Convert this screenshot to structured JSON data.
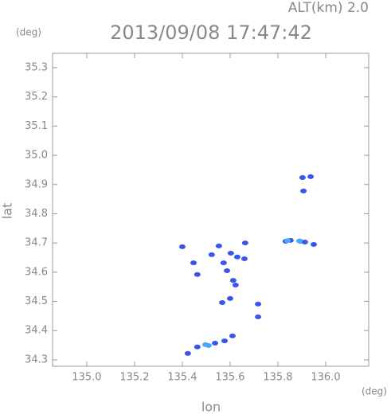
{
  "chart_data": {
    "type": "scatter",
    "title": "2013/09/08 17:47:42",
    "annotation": "ALT(km) 2.0",
    "x_label": "lon",
    "y_label": "lat",
    "x_unit": "(deg)",
    "y_unit": "(deg)",
    "xlim": [
      134.857,
      136.18
    ],
    "ylim": [
      34.278,
      35.349
    ],
    "xticks": [
      {
        "value": 135,
        "label": "135.0"
      },
      135.2,
      135.4,
      135.6,
      135.8,
      {
        "value": 136,
        "label": "136.0"
      }
    ],
    "yticks": [
      34.3,
      34.4,
      34.5,
      34.6,
      34.7,
      34.8,
      34.9,
      {
        "value": 35,
        "label": "35.0"
      },
      35.1,
      35.2,
      35.3
    ],
    "series": [
      {
        "color": "#3a55ee",
        "x": [
          135.903,
          135.937,
          135.907,
          135.833,
          135.853,
          135.893,
          135.913,
          135.95,
          135.4,
          135.447,
          135.463,
          135.553,
          135.523,
          135.573,
          135.603,
          135.63,
          135.663,
          135.66,
          135.587,
          135.613,
          135.623,
          135.6,
          135.567,
          135.717,
          135.717,
          135.61,
          135.577,
          135.537,
          135.463,
          135.423
        ],
        "y": [
          34.924,
          34.927,
          34.878,
          34.706,
          34.709,
          34.706,
          34.703,
          34.695,
          34.687,
          34.632,
          34.592,
          34.69,
          34.66,
          34.632,
          34.665,
          34.652,
          34.7,
          34.646,
          34.605,
          34.572,
          34.556,
          34.51,
          34.496,
          34.491,
          34.447,
          34.382,
          34.365,
          34.357,
          34.344,
          34.322
        ]
      },
      {
        "color": "#44aaff",
        "x": [
          135.497,
          135.51,
          135.84,
          135.89
        ],
        "y": [
          34.352,
          34.349,
          34.708,
          34.707
        ]
      }
    ]
  }
}
